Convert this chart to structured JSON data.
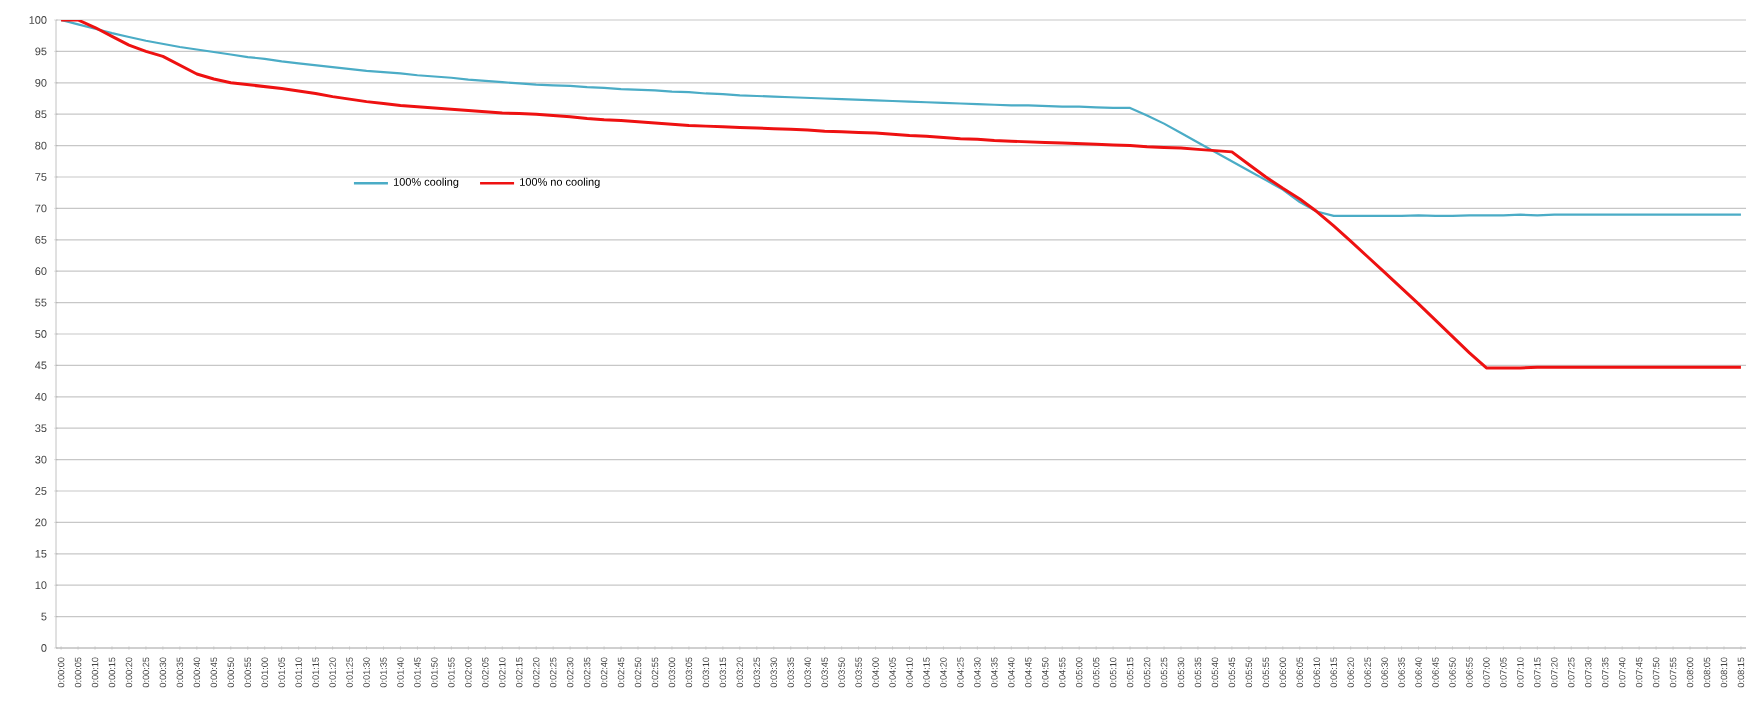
{
  "chart_data": {
    "type": "line",
    "categories": [
      "0:00:00",
      "0:00:05",
      "0:00:10",
      "0:00:15",
      "0:00:20",
      "0:00:25",
      "0:00:30",
      "0:00:35",
      "0:00:40",
      "0:00:45",
      "0:00:50",
      "0:00:55",
      "0:01:00",
      "0:01:05",
      "0:01:10",
      "0:01:15",
      "0:01:20",
      "0:01:25",
      "0:01:30",
      "0:01:35",
      "0:01:40",
      "0:01:45",
      "0:01:50",
      "0:01:55",
      "0:02:00",
      "0:02:05",
      "0:02:10",
      "0:02:15",
      "0:02:20",
      "0:02:25",
      "0:02:30",
      "0:02:35",
      "0:02:40",
      "0:02:45",
      "0:02:50",
      "0:02:55",
      "0:03:00",
      "0:03:05",
      "0:03:10",
      "0:03:15",
      "0:03:20",
      "0:03:25",
      "0:03:30",
      "0:03:35",
      "0:03:40",
      "0:03:45",
      "0:03:50",
      "0:03:55",
      "0:04:00",
      "0:04:05",
      "0:04:10",
      "0:04:15",
      "0:04:20",
      "0:04:25",
      "0:04:30",
      "0:04:35",
      "0:04:40",
      "0:04:45",
      "0:04:50",
      "0:04:55",
      "0:05:00",
      "0:05:05",
      "0:05:10",
      "0:05:15",
      "0:05:20",
      "0:05:25",
      "0:05:30",
      "0:05:35",
      "0:05:40",
      "0:05:45",
      "0:05:50",
      "0:05:55",
      "0:06:00",
      "0:06:05",
      "0:06:10",
      "0:06:15",
      "0:06:20",
      "0:06:25",
      "0:06:30",
      "0:06:35",
      "0:06:40",
      "0:06:45",
      "0:06:50",
      "0:06:55",
      "0:07:00",
      "0:07:05",
      "0:07:10",
      "0:07:15",
      "0:07:20",
      "0:07:25",
      "0:07:30",
      "0:07:35",
      "0:07:40",
      "0:07:45",
      "0:07:50",
      "0:07:55",
      "0:08:00",
      "0:08:05",
      "0:08:10",
      "0:08:15"
    ],
    "series": [
      {
        "name": "100% cooling",
        "color": "#4bacc6",
        "values": [
          100,
          99.3,
          98.6,
          97.9,
          97.3,
          96.7,
          96.2,
          95.7,
          95.3,
          94.9,
          94.5,
          94.1,
          93.8,
          93.4,
          93.1,
          92.8,
          92.5,
          92.2,
          91.9,
          91.7,
          91.5,
          91.2,
          91.0,
          90.8,
          90.5,
          90.3,
          90.1,
          89.9,
          89.7,
          89.6,
          89.5,
          89.3,
          89.2,
          89.0,
          88.9,
          88.8,
          88.6,
          88.5,
          88.3,
          88.2,
          88.0,
          87.9,
          87.8,
          87.7,
          87.6,
          87.5,
          87.4,
          87.3,
          87.2,
          87.1,
          87.0,
          86.9,
          86.8,
          86.7,
          86.6,
          86.5,
          86.4,
          86.4,
          86.3,
          86.2,
          86.2,
          86.1,
          86.0,
          86.0,
          84.8,
          83.5,
          82.0,
          80.5,
          79.0,
          77.5,
          76.0,
          74.5,
          73.0,
          71.0,
          69.5,
          68.8,
          68.8,
          68.8,
          68.8,
          68.8,
          68.9,
          68.8,
          68.8,
          68.9,
          68.9,
          68.9,
          69.0,
          68.9,
          69.0,
          69.0,
          69.0,
          69.0,
          69.0,
          69.0,
          69.0,
          69.0,
          69.0,
          69.0,
          69.0,
          69.0
        ]
      },
      {
        "name": "100% no cooling",
        "color": "#ee1111",
        "values": [
          100,
          100,
          98.8,
          97.4,
          96.0,
          95.0,
          94.2,
          92.8,
          91.4,
          90.6,
          90.0,
          89.7,
          89.4,
          89.1,
          88.7,
          88.3,
          87.8,
          87.4,
          87.0,
          86.7,
          86.4,
          86.2,
          86.0,
          85.8,
          85.6,
          85.4,
          85.2,
          85.1,
          85.0,
          84.8,
          84.6,
          84.3,
          84.1,
          84.0,
          83.8,
          83.6,
          83.4,
          83.2,
          83.1,
          83.0,
          82.9,
          82.8,
          82.7,
          82.6,
          82.5,
          82.3,
          82.2,
          82.1,
          82.0,
          81.8,
          81.6,
          81.5,
          81.3,
          81.1,
          81.0,
          80.8,
          80.7,
          80.6,
          80.5,
          80.4,
          80.3,
          80.2,
          80.1,
          80.0,
          79.8,
          79.7,
          79.6,
          79.4,
          79.2,
          79.0,
          77.0,
          75.0,
          73.2,
          71.5,
          69.5,
          67.2,
          64.8,
          62.3,
          59.8,
          57.3,
          54.8,
          52.2,
          49.6,
          47.0,
          44.6,
          44.6,
          44.6,
          44.7,
          44.7,
          44.7,
          44.7,
          44.7,
          44.7,
          44.7,
          44.7,
          44.7,
          44.7,
          44.7,
          44.7,
          44.7
        ]
      }
    ],
    "ylim": [
      0,
      100
    ],
    "yticks": [
      0,
      5,
      10,
      15,
      20,
      25,
      30,
      35,
      40,
      45,
      50,
      55,
      60,
      65,
      70,
      75,
      80,
      85,
      90,
      95,
      100
    ],
    "grid": "y",
    "legend": "top left"
  }
}
